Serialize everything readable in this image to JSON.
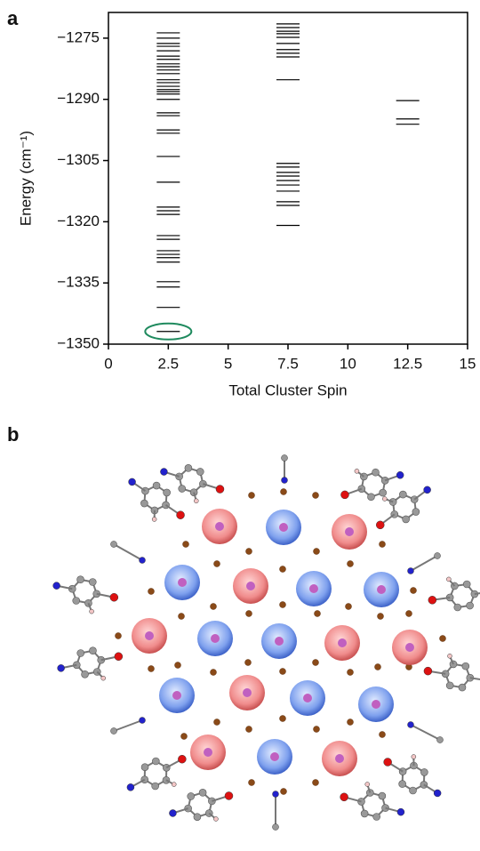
{
  "panel_labels": [
    "a",
    "b"
  ],
  "chart_data": {
    "type": "scatter",
    "marker": "hline",
    "x_label": "Total Cluster Spin",
    "y_label": "Energy (cm⁻¹)",
    "xlim": [
      0,
      15
    ],
    "xticks": [
      0,
      2.5,
      5,
      7.5,
      10,
      12.5,
      15
    ],
    "ylim": [
      -1350,
      -1268.7
    ],
    "yticks": [
      {
        "value": -1275,
        "label": "−1275"
      },
      {
        "value": -1290,
        "label": "−1290"
      },
      {
        "value": -1305,
        "label": "−1305"
      },
      {
        "value": -1320,
        "label": "−1320"
      },
      {
        "value": -1335,
        "label": "−1335"
      },
      {
        "value": -1350,
        "label": "−1350"
      }
    ],
    "series": [
      {
        "x": 2.5,
        "color": "#000000",
        "values": [
          -1273.7,
          -1275,
          -1276.3,
          -1277,
          -1278.1,
          -1279.4,
          -1280.2,
          -1281.3,
          -1282,
          -1282.8,
          -1283.7,
          -1285.2,
          -1285.9,
          -1286.8,
          -1287.6,
          -1288.1,
          -1288.7,
          -1290,
          -1293.3,
          -1294,
          -1297.5,
          -1298.3,
          -1304,
          -1310.3,
          -1316.4,
          -1317.3,
          -1318.2,
          -1323.4,
          -1324.3,
          -1327.1,
          -1328,
          -1328.8,
          -1329.9,
          -1334.7,
          -1336,
          -1341,
          -1346.9
        ]
      },
      {
        "x": 7.5,
        "color": "#000000",
        "values": [
          -1271.5,
          -1272.4,
          -1273.3,
          -1273.9,
          -1274.8,
          -1276.3,
          -1277.8,
          -1278.7,
          -1279.6,
          -1285.2,
          -1305.7,
          -1306.6,
          -1307.9,
          -1308.8,
          -1309.9,
          -1311,
          -1312.5,
          -1315.1,
          -1316,
          -1320.9
        ]
      },
      {
        "x": 12.5,
        "color": "#000000",
        "values": [
          -1290.3,
          -1294.8,
          -1296.1
        ]
      }
    ],
    "highlight_color": "#1f8a5e"
  }
}
